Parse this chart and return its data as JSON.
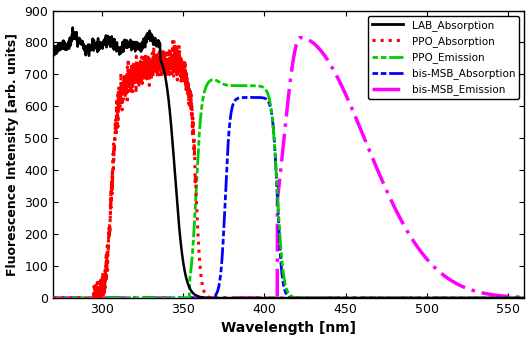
{
  "title": "",
  "xlabel": "Wavelength [nm]",
  "ylabel": "Fluorescence Intensity [arb. units]",
  "xlim": [
    270,
    560
  ],
  "ylim": [
    0,
    900
  ],
  "xticks": [
    300,
    350,
    400,
    450,
    500,
    550
  ],
  "yticks": [
    0,
    100,
    200,
    300,
    400,
    500,
    600,
    700,
    800,
    900
  ],
  "background_color": "#ffffff"
}
